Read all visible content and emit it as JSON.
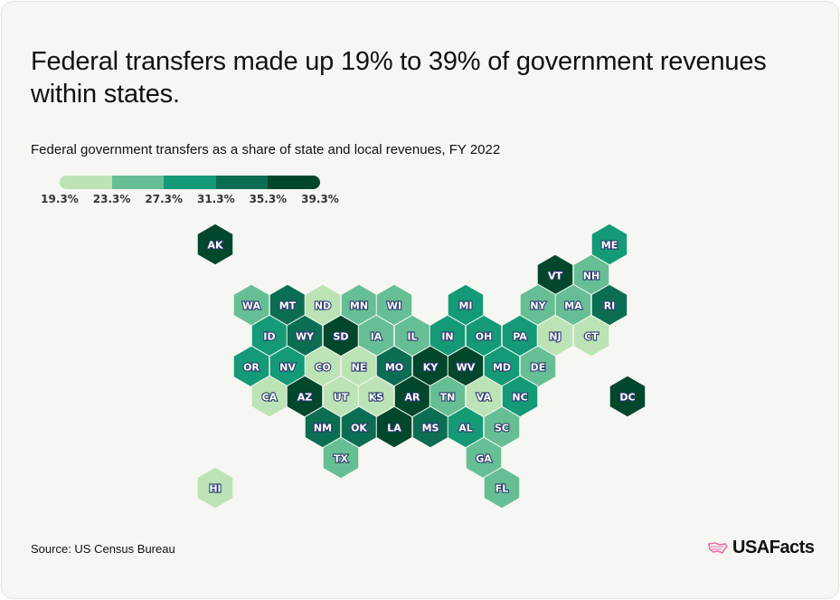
{
  "title": "Federal transfers made up 19% to 39% of government revenues within states.",
  "subtitle": "Federal government transfers as a share of state and local revenues, FY 2022",
  "source": "Source: US Census Bureau",
  "logo_text": "USAFacts",
  "chart_data": {
    "type": "heatmap",
    "title": "Federal government transfers as a share of state and local revenues, FY 2022",
    "legend": {
      "placement": "top-left",
      "ticks": [
        "19.3%",
        "23.3%",
        "27.3%",
        "31.3%",
        "35.3%",
        "39.3%"
      ],
      "colors": [
        "#bce3b5",
        "#66bf94",
        "#149a77",
        "#0b6e52",
        "#00472b"
      ]
    },
    "states": [
      {
        "code": "AK",
        "level": 4
      },
      {
        "code": "ME",
        "level": 2
      },
      {
        "code": "VT",
        "level": 4
      },
      {
        "code": "NH",
        "level": 1
      },
      {
        "code": "WA",
        "level": 1
      },
      {
        "code": "MT",
        "level": 3
      },
      {
        "code": "ND",
        "level": 0
      },
      {
        "code": "MN",
        "level": 1
      },
      {
        "code": "WI",
        "level": 1
      },
      {
        "code": "MI",
        "level": 2
      },
      {
        "code": "NY",
        "level": 1
      },
      {
        "code": "MA",
        "level": 1
      },
      {
        "code": "RI",
        "level": 3
      },
      {
        "code": "ID",
        "level": 2
      },
      {
        "code": "WY",
        "level": 3
      },
      {
        "code": "SD",
        "level": 4
      },
      {
        "code": "IA",
        "level": 1
      },
      {
        "code": "IL",
        "level": 1
      },
      {
        "code": "IN",
        "level": 2
      },
      {
        "code": "OH",
        "level": 2
      },
      {
        "code": "PA",
        "level": 2
      },
      {
        "code": "NJ",
        "level": 0
      },
      {
        "code": "CT",
        "level": 0
      },
      {
        "code": "OR",
        "level": 2
      },
      {
        "code": "NV",
        "level": 2
      },
      {
        "code": "CO",
        "level": 0
      },
      {
        "code": "NE",
        "level": 0
      },
      {
        "code": "MO",
        "level": 3
      },
      {
        "code": "KY",
        "level": 4
      },
      {
        "code": "WV",
        "level": 4
      },
      {
        "code": "MD",
        "level": 2
      },
      {
        "code": "DE",
        "level": 1
      },
      {
        "code": "CA",
        "level": 0
      },
      {
        "code": "AZ",
        "level": 4
      },
      {
        "code": "UT",
        "level": 0
      },
      {
        "code": "KS",
        "level": 0
      },
      {
        "code": "AR",
        "level": 4
      },
      {
        "code": "TN",
        "level": 1
      },
      {
        "code": "VA",
        "level": 0
      },
      {
        "code": "NC",
        "level": 2
      },
      {
        "code": "DC",
        "level": 4
      },
      {
        "code": "NM",
        "level": 3
      },
      {
        "code": "OK",
        "level": 3
      },
      {
        "code": "LA",
        "level": 4
      },
      {
        "code": "MS",
        "level": 3
      },
      {
        "code": "AL",
        "level": 2
      },
      {
        "code": "SC",
        "level": 1
      },
      {
        "code": "TX",
        "level": 1
      },
      {
        "code": "GA",
        "level": 1
      },
      {
        "code": "FL",
        "level": 1
      },
      {
        "code": "HI",
        "level": 0
      }
    ]
  }
}
